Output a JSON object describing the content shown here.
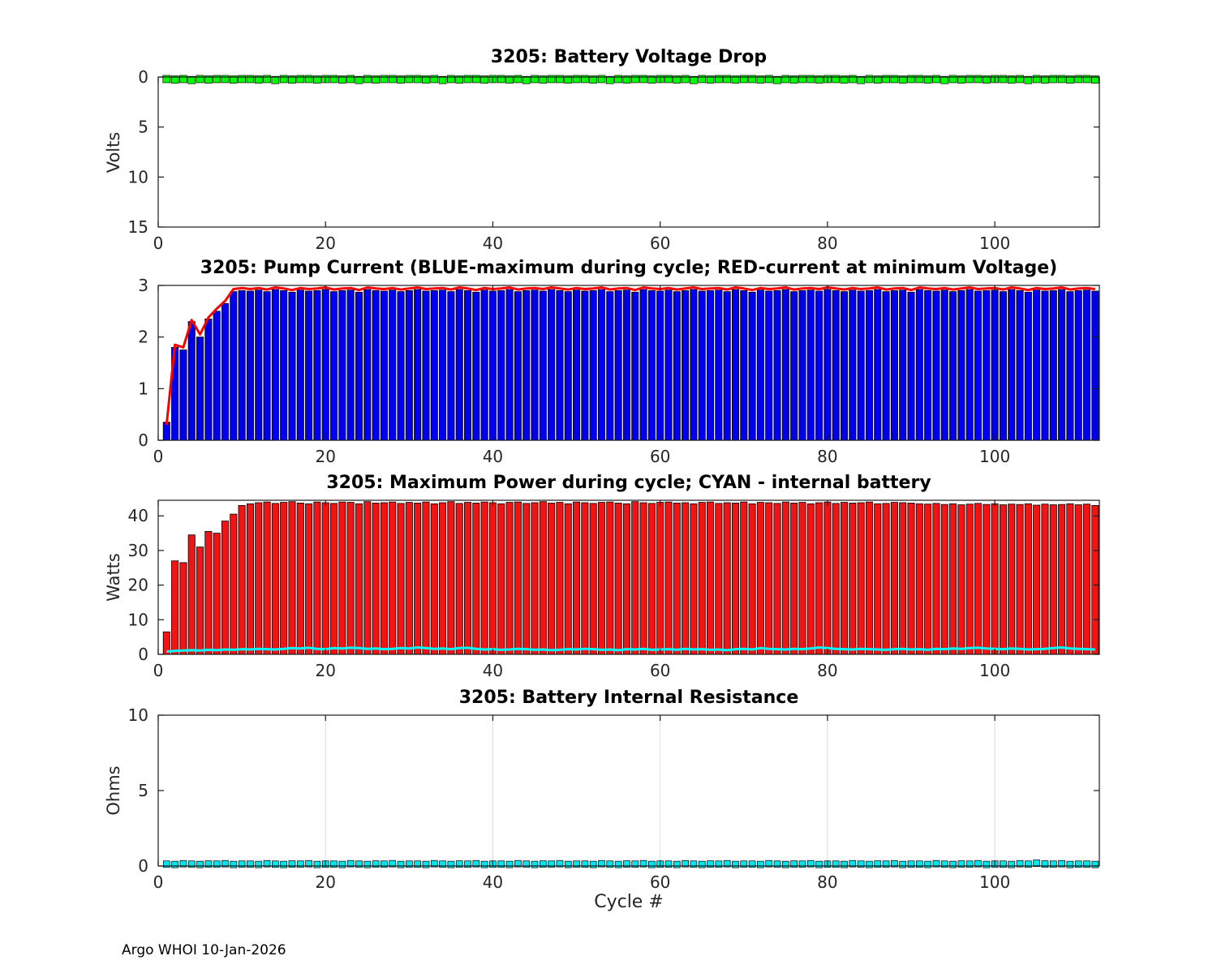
{
  "figure": {
    "footer": "Argo WHOI 10-Jan-2026",
    "xlabel": "Cycle #"
  },
  "chart_data": [
    {
      "id": "battery-voltage-drop",
      "type": "scatter",
      "title": "3205: Battery Voltage Drop",
      "ylabel": "Volts",
      "xlim": [
        0,
        112.5
      ],
      "ylim": [
        0,
        15
      ],
      "y_reversed": true,
      "grid": false,
      "xticks": [
        0,
        20,
        40,
        60,
        80,
        100
      ],
      "yticks": [
        0,
        5,
        10,
        15
      ],
      "marker_color": "#00ff00",
      "marker_values": [
        0.2,
        0.25,
        0.2,
        0.3,
        0.2,
        0.25,
        0.2,
        0.2,
        0.25,
        0.2,
        0.2,
        0.25,
        0.2,
        0.3,
        0.2,
        0.25,
        0.2,
        0.2,
        0.25,
        0.2,
        0.2,
        0.25,
        0.2,
        0.3,
        0.2,
        0.25,
        0.2,
        0.2,
        0.25,
        0.2,
        0.2,
        0.25,
        0.2,
        0.3,
        0.2,
        0.25,
        0.2,
        0.2,
        0.25,
        0.2,
        0.2,
        0.25,
        0.2,
        0.3,
        0.2,
        0.25,
        0.2,
        0.2,
        0.25,
        0.2,
        0.2,
        0.25,
        0.2,
        0.3,
        0.2,
        0.25,
        0.2,
        0.2,
        0.25,
        0.2,
        0.2,
        0.25,
        0.2,
        0.3,
        0.2,
        0.25,
        0.2,
        0.2,
        0.25,
        0.2,
        0.2,
        0.25,
        0.2,
        0.3,
        0.2,
        0.25,
        0.2,
        0.2,
        0.25,
        0.2,
        0.2,
        0.25,
        0.2,
        0.3,
        0.2,
        0.25,
        0.2,
        0.2,
        0.25,
        0.2,
        0.2,
        0.25,
        0.2,
        0.3,
        0.2,
        0.25,
        0.2,
        0.2,
        0.25,
        0.2,
        0.2,
        0.25,
        0.2,
        0.3,
        0.2,
        0.25,
        0.2,
        0.2,
        0.25,
        0.2,
        0.2,
        0.25
      ]
    },
    {
      "id": "pump-current",
      "type": "bar+line",
      "title": "3205: Pump Current (BLUE-maximum during cycle; RED-current at minimum Voltage)",
      "ylabel": "",
      "xlim": [
        0,
        112.5
      ],
      "ylim": [
        0,
        3
      ],
      "y_reversed": false,
      "grid": false,
      "xticks": [
        0,
        20,
        40,
        60,
        80,
        100
      ],
      "yticks": [
        0,
        1,
        2,
        3
      ],
      "bar_color": "#0000ee",
      "line_color": "#ff0000",
      "bar_values": [
        0.35,
        1.8,
        1.75,
        2.3,
        2.0,
        2.35,
        2.5,
        2.65,
        2.88,
        2.9,
        2.89,
        2.91,
        2.88,
        2.92,
        2.9,
        2.87,
        2.91,
        2.89,
        2.9,
        2.92,
        2.88,
        2.9,
        2.91,
        2.87,
        2.92,
        2.9,
        2.89,
        2.91,
        2.88,
        2.9,
        2.92,
        2.89,
        2.9,
        2.91,
        2.88,
        2.92,
        2.9,
        2.87,
        2.91,
        2.89,
        2.9,
        2.92,
        2.88,
        2.9,
        2.91,
        2.89,
        2.92,
        2.9,
        2.88,
        2.91,
        2.89,
        2.9,
        2.92,
        2.88,
        2.9,
        2.91,
        2.87,
        2.92,
        2.9,
        2.89,
        2.91,
        2.88,
        2.9,
        2.92,
        2.89,
        2.9,
        2.91,
        2.88,
        2.92,
        2.9,
        2.87,
        2.91,
        2.89,
        2.9,
        2.92,
        2.88,
        2.9,
        2.91,
        2.89,
        2.92,
        2.9,
        2.88,
        2.91,
        2.89,
        2.9,
        2.92,
        2.88,
        2.9,
        2.91,
        2.87,
        2.92,
        2.9,
        2.89,
        2.91,
        2.88,
        2.9,
        2.92,
        2.89,
        2.9,
        2.91,
        2.88,
        2.92,
        2.9,
        2.87,
        2.91,
        2.89,
        2.9,
        2.92,
        2.88,
        2.9,
        2.91,
        2.89
      ],
      "line_values": [
        0.3,
        1.85,
        1.8,
        2.33,
        2.05,
        2.38,
        2.55,
        2.7,
        2.93,
        2.95,
        2.93,
        2.95,
        2.92,
        2.96,
        2.94,
        2.91,
        2.95,
        2.93,
        2.94,
        2.96,
        2.92,
        2.94,
        2.95,
        2.91,
        2.96,
        2.94,
        2.93,
        2.95,
        2.92,
        2.94,
        2.96,
        2.93,
        2.94,
        2.95,
        2.92,
        2.96,
        2.94,
        2.91,
        2.95,
        2.93,
        2.94,
        2.96,
        2.92,
        2.94,
        2.95,
        2.93,
        2.96,
        2.94,
        2.92,
        2.95,
        2.93,
        2.94,
        2.96,
        2.92,
        2.94,
        2.95,
        2.91,
        2.96,
        2.94,
        2.93,
        2.95,
        2.92,
        2.94,
        2.96,
        2.93,
        2.94,
        2.95,
        2.92,
        2.96,
        2.94,
        2.91,
        2.95,
        2.93,
        2.94,
        2.96,
        2.92,
        2.94,
        2.95,
        2.93,
        2.96,
        2.94,
        2.92,
        2.95,
        2.93,
        2.94,
        2.96,
        2.92,
        2.94,
        2.95,
        2.91,
        2.96,
        2.94,
        2.93,
        2.95,
        2.92,
        2.94,
        2.96,
        2.93,
        2.94,
        2.95,
        2.92,
        2.96,
        2.94,
        2.91,
        2.95,
        2.93,
        2.94,
        2.96,
        2.92,
        2.94,
        2.95,
        2.93
      ]
    },
    {
      "id": "max-power",
      "type": "bar+line",
      "title": "3205: Maximum Power during cycle; CYAN - internal battery",
      "ylabel": "Watts",
      "xlim": [
        0,
        112.5
      ],
      "ylim": [
        0,
        44.5
      ],
      "y_reversed": false,
      "grid": false,
      "xticks": [
        0,
        20,
        40,
        60,
        80,
        100
      ],
      "yticks": [
        0,
        10,
        20,
        30,
        40
      ],
      "bar_color": "#f01414",
      "line_color": "#00ffff",
      "bar_values": [
        6.5,
        27.0,
        26.5,
        34.5,
        31.0,
        35.5,
        35.0,
        38.5,
        40.5,
        43.0,
        43.5,
        43.8,
        44.0,
        43.6,
        43.9,
        44.1,
        43.7,
        43.5,
        44.0,
        43.8,
        43.6,
        44.0,
        43.9,
        43.5,
        44.1,
        43.7,
        43.8,
        44.0,
        43.6,
        43.9,
        43.7,
        44.0,
        43.5,
        43.8,
        44.1,
        43.6,
        43.9,
        43.7,
        44.0,
        43.8,
        43.5,
        43.9,
        44.0,
        43.6,
        43.8,
        44.1,
        43.7,
        43.9,
        43.5,
        44.0,
        43.8,
        43.6,
        43.9,
        44.0,
        43.7,
        43.5,
        44.1,
        43.8,
        43.6,
        43.9,
        44.0,
        43.7,
        43.8,
        43.5,
        43.9,
        44.0,
        43.6,
        43.8,
        43.7,
        44.0,
        43.5,
        43.9,
        43.8,
        43.6,
        44.0,
        43.7,
        43.9,
        43.5,
        43.8,
        44.0,
        43.6,
        43.9,
        43.7,
        43.8,
        44.0,
        43.5,
        43.6,
        43.9,
        43.8,
        43.7,
        43.5,
        43.4,
        43.6,
        43.3,
        43.5,
        43.2,
        43.4,
        43.6,
        43.3,
        43.5,
        43.2,
        43.4,
        43.3,
        43.5,
        43.1,
        43.4,
        43.2,
        43.3,
        43.5,
        43.2,
        43.4,
        43.0
      ],
      "line_values": [
        0.8,
        1.0,
        1.1,
        1.2,
        1.1,
        1.3,
        1.2,
        1.4,
        1.3,
        1.5,
        1.4,
        1.6,
        1.5,
        1.4,
        1.6,
        1.8,
        1.7,
        1.9,
        1.6,
        1.5,
        1.8,
        1.7,
        1.9,
        1.8,
        1.6,
        1.7,
        1.5,
        1.6,
        1.8,
        1.7,
        2.0,
        1.8,
        1.6,
        1.7,
        1.5,
        1.8,
        1.9,
        1.6,
        1.4,
        1.5,
        1.3,
        1.4,
        1.6,
        1.5,
        1.3,
        1.4,
        1.2,
        1.3,
        1.5,
        1.4,
        1.6,
        1.5,
        1.3,
        1.4,
        1.2,
        1.5,
        1.4,
        1.6,
        1.3,
        1.4,
        1.5,
        1.3,
        1.6,
        1.4,
        1.5,
        1.3,
        1.4,
        1.2,
        1.5,
        1.6,
        1.4,
        1.8,
        1.6,
        1.5,
        1.4,
        1.6,
        1.5,
        1.7,
        2.0,
        1.8,
        1.6,
        1.5,
        1.4,
        1.6,
        1.5,
        1.4,
        1.3,
        1.5,
        1.6,
        1.4,
        1.5,
        1.3,
        1.6,
        1.5,
        1.7,
        1.6,
        1.8,
        1.9,
        1.7,
        1.6,
        1.5,
        1.7,
        1.6,
        1.4,
        1.5,
        1.6,
        1.8,
        2.0,
        1.7,
        1.6,
        1.5,
        1.4
      ]
    },
    {
      "id": "battery-internal-resistance",
      "type": "scatter",
      "title": "3205: Battery Internal Resistance",
      "ylabel": "Ohms",
      "xlim": [
        0,
        112.5
      ],
      "ylim": [
        0,
        10
      ],
      "y_reversed": false,
      "grid": true,
      "xticks": [
        0,
        20,
        40,
        60,
        80,
        100
      ],
      "yticks": [
        0,
        5,
        10
      ],
      "marker_color": "#00e5ee",
      "marker_values": [
        0.12,
        0.1,
        0.15,
        0.12,
        0.1,
        0.13,
        0.12,
        0.15,
        0.1,
        0.12,
        0.12,
        0.1,
        0.15,
        0.12,
        0.1,
        0.13,
        0.12,
        0.15,
        0.1,
        0.12,
        0.12,
        0.1,
        0.15,
        0.12,
        0.1,
        0.13,
        0.12,
        0.15,
        0.1,
        0.12,
        0.12,
        0.1,
        0.15,
        0.12,
        0.1,
        0.13,
        0.12,
        0.15,
        0.1,
        0.12,
        0.12,
        0.1,
        0.15,
        0.12,
        0.1,
        0.13,
        0.12,
        0.15,
        0.1,
        0.12,
        0.12,
        0.1,
        0.15,
        0.12,
        0.1,
        0.13,
        0.12,
        0.15,
        0.1,
        0.12,
        0.12,
        0.1,
        0.15,
        0.12,
        0.1,
        0.13,
        0.12,
        0.15,
        0.1,
        0.12,
        0.12,
        0.1,
        0.15,
        0.12,
        0.1,
        0.13,
        0.12,
        0.15,
        0.1,
        0.12,
        0.12,
        0.1,
        0.15,
        0.12,
        0.1,
        0.13,
        0.12,
        0.15,
        0.1,
        0.12,
        0.12,
        0.1,
        0.15,
        0.12,
        0.1,
        0.13,
        0.12,
        0.15,
        0.1,
        0.12,
        0.12,
        0.1,
        0.15,
        0.12,
        0.18,
        0.13,
        0.12,
        0.15,
        0.1,
        0.12,
        0.12,
        0.1
      ]
    }
  ]
}
